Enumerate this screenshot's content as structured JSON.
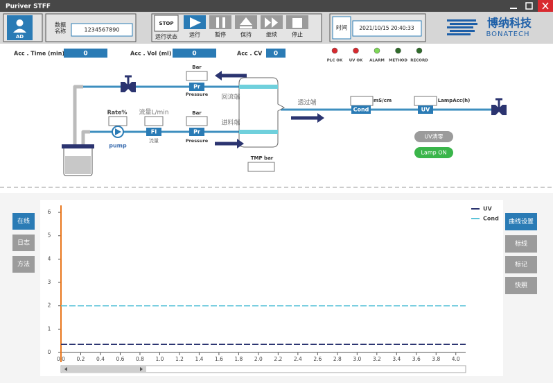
{
  "window": {
    "title": "Puriver STFF"
  },
  "toolbar": {
    "user": "AD",
    "data_name_label": [
      "数据",
      "名称"
    ],
    "data_name": "1234567890",
    "state": "STOP",
    "state_label": "运行状态",
    "buttons": [
      "运行",
      "暂停",
      "保持",
      "继续",
      "停止"
    ],
    "time_label": "时间",
    "time": "2021/10/15   20:40:33",
    "logo": "博纳科技",
    "logo_sub": "BONATECH"
  },
  "counters": [
    {
      "label": "Acc . Time (min)",
      "value": 0
    },
    {
      "label": "Acc . Vol (ml)",
      "value": 0
    },
    {
      "label": "Acc . CV",
      "value": 0
    }
  ],
  "indicators": [
    "PLC OK",
    "UV OK",
    "ALARM",
    "METHOD",
    "RECORD"
  ],
  "diagram": {
    "return_bar": "Bar",
    "return_pr": "Pr",
    "return_pressure": "Pressure",
    "return_side": "回流端",
    "rate": "Rate%",
    "pump": "pump",
    "flow_unit": "流量L/min",
    "fi": "FI",
    "flow": "流量",
    "feed_bar": "Bar",
    "feed_pr": "Pr",
    "feed_pressure": "Pressure",
    "feed_side": "进料端",
    "tmp": "TMP bar",
    "permeate_side": "透过端",
    "cond_unit": "mS/cm",
    "cond": "Cond",
    "lamp_acc": "LampAcc(h)",
    "uv": "UV",
    "uv_zero": "UV清零",
    "lamp_on": "Lamp  ON"
  },
  "side_buttons": [
    "在线",
    "日志",
    "方法"
  ],
  "chart_buttons": [
    "曲线设置",
    "标线",
    "标记",
    "快照"
  ],
  "chart_data": {
    "type": "line",
    "x": [
      0,
      4.1
    ],
    "series": [
      {
        "name": "UV",
        "color": "#2b3470",
        "values": [
          0.35,
          0.35
        ]
      },
      {
        "name": "Cond",
        "color": "#5bc3d8",
        "values": [
          2,
          2
        ]
      }
    ],
    "xlim": [
      0,
      4.1
    ],
    "ylim": [
      0,
      6.3
    ],
    "xticks": [
      {
        "value": 0,
        "label": "0.0"
      },
      0.2,
      0.4,
      0.6,
      0.8,
      {
        "value": 1,
        "label": "1.0"
      },
      1.2,
      1.4,
      1.6,
      1.8,
      {
        "value": 2,
        "label": "2.0"
      },
      2.2,
      2.4,
      2.6,
      2.8,
      {
        "value": 3,
        "label": "3.0"
      },
      3.2,
      3.4,
      3.6,
      3.8,
      {
        "value": 4,
        "label": "4.0"
      }
    ],
    "yticks": [
      0,
      1,
      2,
      3,
      4,
      5,
      6
    ]
  }
}
